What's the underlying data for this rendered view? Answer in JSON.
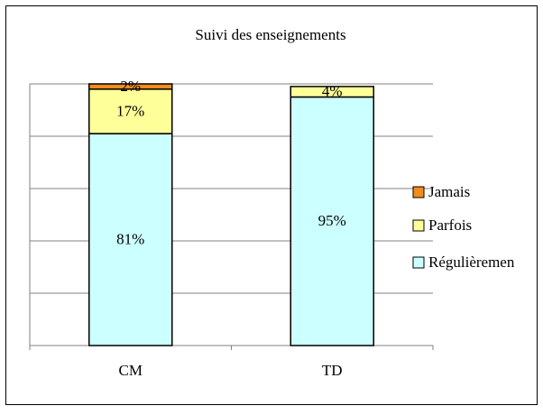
{
  "chart_data": {
    "type": "stacked_bar",
    "title": "Suivi des enseignements",
    "categories": [
      "CM",
      "TD"
    ],
    "series": [
      {
        "name": "Régulièremen",
        "color": "#ccffff",
        "values": [
          81,
          95
        ],
        "value_labels": [
          "81%",
          "95%"
        ]
      },
      {
        "name": "Parfois",
        "color": "#ffff99",
        "values": [
          17,
          4
        ],
        "value_labels": [
          "17%",
          "4%"
        ]
      },
      {
        "name": "Jamais",
        "color": "#f28c1c",
        "values": [
          2,
          null
        ],
        "value_labels": [
          "2%",
          null
        ]
      }
    ],
    "ylim": [
      0,
      100
    ],
    "yticks": [
      0,
      20,
      40,
      60,
      80,
      100
    ],
    "grid": true,
    "legend": "right"
  }
}
